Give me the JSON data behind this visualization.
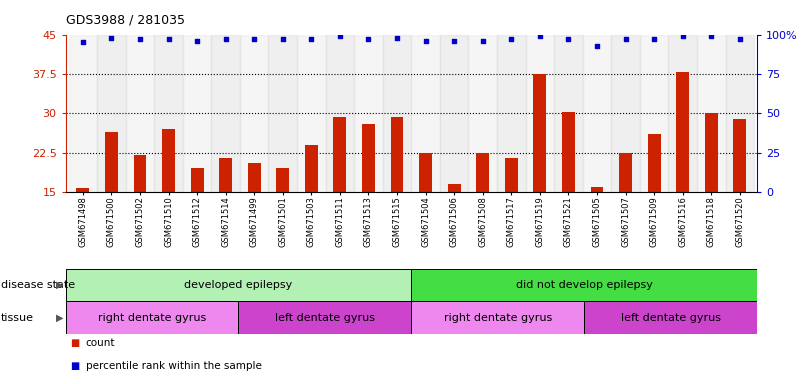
{
  "title": "GDS3988 / 281035",
  "samples": [
    "GSM671498",
    "GSM671500",
    "GSM671502",
    "GSM671510",
    "GSM671512",
    "GSM671514",
    "GSM671499",
    "GSM671501",
    "GSM671503",
    "GSM671511",
    "GSM671513",
    "GSM671515",
    "GSM671504",
    "GSM671506",
    "GSM671508",
    "GSM671517",
    "GSM671519",
    "GSM671521",
    "GSM671505",
    "GSM671507",
    "GSM671509",
    "GSM671516",
    "GSM671518",
    "GSM671520"
  ],
  "bar_values": [
    15.7,
    26.5,
    22.0,
    27.0,
    19.5,
    21.5,
    20.5,
    19.5,
    24.0,
    29.3,
    28.0,
    29.3,
    22.5,
    16.5,
    22.5,
    21.5,
    37.5,
    30.2,
    16.0,
    22.5,
    26.0,
    37.8,
    30.0,
    29.0
  ],
  "percentile_values": [
    95.0,
    98.0,
    97.0,
    97.0,
    96.0,
    97.0,
    97.0,
    97.0,
    97.0,
    99.0,
    97.0,
    98.0,
    96.0,
    96.0,
    96.0,
    97.0,
    99.0,
    97.0,
    93.0,
    97.0,
    97.0,
    99.0,
    99.0,
    97.0
  ],
  "ymin": 15,
  "ymax": 45,
  "yticks_left": [
    15,
    22.5,
    30,
    37.5,
    45
  ],
  "yticks_left_labels": [
    "15",
    "22.5",
    "30",
    "37.5",
    "45"
  ],
  "yticks_right": [
    0,
    25,
    50,
    75,
    100
  ],
  "yticks_right_labels": [
    "0",
    "25",
    "50",
    "75",
    "100%"
  ],
  "bar_color": "#cc2200",
  "dot_color": "#0000cc",
  "bg_color": "#ffffff",
  "tick_area_color": "#d8d8d8",
  "disease_state_groups": [
    {
      "label": "developed epilepsy",
      "start": 0,
      "end": 12,
      "color": "#b3f0b3"
    },
    {
      "label": "did not develop epilepsy",
      "start": 12,
      "end": 24,
      "color": "#44dd44"
    }
  ],
  "tissue_groups": [
    {
      "label": "right dentate gyrus",
      "start": 0,
      "end": 6,
      "color": "#ee88ee"
    },
    {
      "label": "left dentate gyrus",
      "start": 6,
      "end": 12,
      "color": "#cc44cc"
    },
    {
      "label": "right dentate gyrus",
      "start": 12,
      "end": 18,
      "color": "#ee88ee"
    },
    {
      "label": "left dentate gyrus",
      "start": 18,
      "end": 24,
      "color": "#cc44cc"
    }
  ],
  "n_samples": 24,
  "dotted_lines": [
    22.5,
    30.0,
    37.5
  ]
}
